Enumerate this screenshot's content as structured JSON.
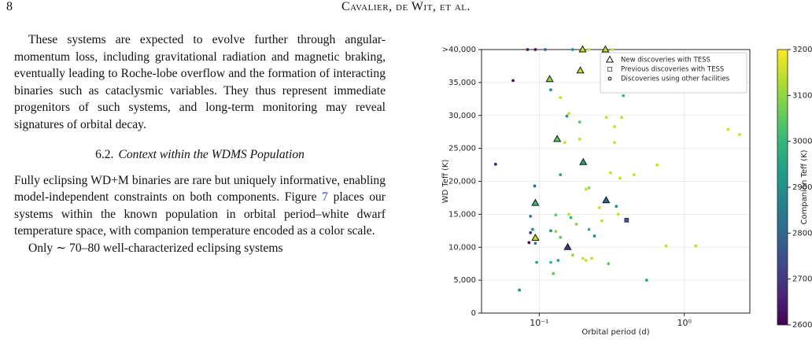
{
  "header": {
    "page": "8",
    "running_head": "Cavalier, de Wit, et al."
  },
  "section": {
    "number": "6.2.",
    "title": "Context within the WDMS Population"
  },
  "paragraphs": [
    "These systems are expected to evolve further through angular-momentum loss, including gravitational radiation and magnetic braking, eventually leading to Roche-lobe overflow and the formation of interacting binaries such as cataclysmic variables. They thus represent immediate progenitors of such systems, and long-term monitoring may reveal signatures of orbital decay.",
    [
      "Fully eclipsing WD+M binaries are rare but uniquely informative, enabling model-independent constraints on both components. Figure ",
      "7",
      " places our systems within the known population in orbital period–white dwarf temperature space, with companion temperature encoded as a color scale."
    ],
    "Only ∼ 70–80 well-characterized eclipsing systems"
  ],
  "chart_data": {
    "type": "scatter",
    "x_label": "Orbital period (d)",
    "y_label": "WD Teff (K)",
    "colorbar_label": "Companion Teff (K)",
    "xscale": "log",
    "xlim": [
      0.04,
      2.83
    ],
    "ylim": [
      0,
      40000
    ],
    "xticks": [
      {
        "value": 0.1,
        "label": "10⁻¹"
      },
      {
        "value": 1,
        "label": "10⁰"
      }
    ],
    "yticks": [
      0,
      {
        "value": 5000,
        "label": "5,000"
      },
      {
        "value": 10000,
        "label": "10,000"
      },
      {
        "value": 15000,
        "label": "15,000"
      },
      {
        "value": 20000,
        "label": "20,000"
      },
      {
        "value": 25000,
        "label": "25,000"
      },
      {
        "value": 30000,
        "label": "30,000"
      },
      {
        "value": 35000,
        "label": "35,000"
      },
      {
        "value": 40000,
        "label": ">40,000"
      }
    ],
    "grid": true,
    "legend": "upper right",
    "colormap": "viridis",
    "clim": [
      2600,
      3200
    ],
    "cticks": [
      2600,
      2700,
      2800,
      2900,
      3000,
      3100,
      3200
    ],
    "series": [
      {
        "name": "New discoveries with TESS",
        "marker": "triangle",
        "x": [
          0.118,
          0.199,
          0.192,
          0.286,
          0.133,
          0.201,
          0.094,
          0.289,
          0.094,
          0.157
        ],
        "values": [
          35500,
          40000,
          36800,
          40000,
          26400,
          22900,
          16700,
          17100,
          11400,
          10000
        ],
        "c": [
          3100,
          3150,
          3150,
          3150,
          3050,
          2950,
          3000,
          2800,
          3150,
          2700
        ]
      },
      {
        "name": "Previous discoveries with TESS",
        "marker": "square",
        "x": [
          0.4
        ],
        "values": [
          14100
        ],
        "c": [
          2750
        ]
      },
      {
        "name": "Discoveries using other facilities",
        "marker": "circle",
        "x": [
          0.05,
          0.066,
          0.073,
          0.085,
          0.087,
          0.087,
          0.09,
          0.093,
          0.094,
          0.096,
          0.098,
          0.12,
          0.12,
          0.12,
          0.125,
          0.13,
          0.13,
          0.135,
          0.14,
          0.14,
          0.14,
          0.15,
          0.155,
          0.16,
          0.16,
          0.165,
          0.17,
          0.18,
          0.19,
          0.19,
          0.2,
          0.21,
          0.21,
          0.22,
          0.22,
          0.23,
          0.24,
          0.26,
          0.27,
          0.29,
          0.3,
          0.31,
          0.33,
          0.33,
          0.34,
          0.35,
          0.36,
          0.37,
          0.38,
          0.45,
          0.55,
          0.65,
          0.75,
          1.2,
          2.0,
          2.4,
          0.083,
          0.094,
          0.11,
          0.17,
          0.22,
          0.32
        ],
        "values": [
          22600,
          35300,
          3500,
          10700,
          12200,
          14700,
          12700,
          19300,
          10600,
          7700,
          11200,
          33900,
          12500,
          7700,
          6000,
          14900,
          12400,
          8000,
          32700,
          21000,
          11500,
          25900,
          29900,
          30300,
          15000,
          14500,
          8800,
          13500,
          29000,
          26400,
          8300,
          18800,
          8000,
          19000,
          12700,
          8300,
          11700,
          16000,
          14000,
          29700,
          7500,
          21300,
          25900,
          28300,
          16200,
          15000,
          20500,
          29700,
          33000,
          21000,
          5000,
          22500,
          10200,
          10200,
          27900,
          27100,
          40000,
          40000,
          40000,
          40000,
          40000,
          40000
        ],
        "c": [
          2650,
          2620,
          2900,
          2620,
          2680,
          2880,
          2900,
          2800,
          2850,
          2950,
          3150,
          2900,
          2900,
          3000,
          3050,
          3050,
          3100,
          2950,
          3150,
          2950,
          3050,
          3150,
          2900,
          3150,
          3150,
          3000,
          3100,
          3100,
          3050,
          3150,
          3150,
          3150,
          3150,
          3100,
          3000,
          3150,
          2900,
          3150,
          3150,
          3150,
          3050,
          3150,
          3150,
          3150,
          2900,
          3150,
          3150,
          3150,
          3000,
          3150,
          2950,
          3150,
          3150,
          3150,
          3150,
          3150,
          2650,
          2620,
          2800,
          2900,
          3150,
          3150
        ]
      }
    ]
  }
}
